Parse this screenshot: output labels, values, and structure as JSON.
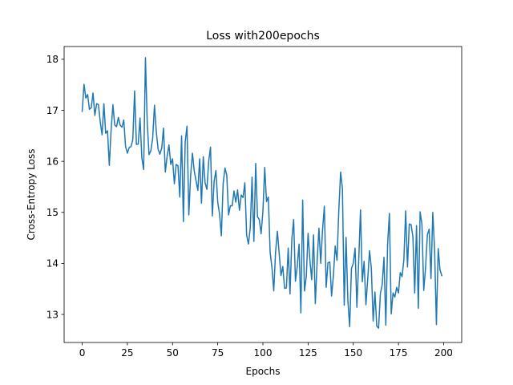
{
  "chart_data": {
    "type": "line",
    "title": "Loss with200epochs",
    "xlabel": "Epochs",
    "ylabel": "Cross-Entropy Loss",
    "xlim": [
      -10,
      210
    ],
    "ylim": [
      12.45,
      18.25
    ],
    "xticks": [
      0,
      25,
      50,
      75,
      100,
      125,
      150,
      175,
      200
    ],
    "yticks": [
      13,
      14,
      15,
      16,
      17,
      18
    ],
    "grid": false,
    "legend": "none",
    "series": [
      {
        "color": "#1f77b4",
        "x": [
          0,
          1,
          2,
          3,
          4,
          5,
          6,
          7,
          8,
          9,
          10,
          11,
          12,
          13,
          14,
          15,
          16,
          17,
          18,
          19,
          20,
          21,
          22,
          23,
          24,
          25,
          26,
          27,
          28,
          29,
          30,
          31,
          32,
          33,
          34,
          35,
          36,
          37,
          38,
          39,
          40,
          41,
          42,
          43,
          44,
          45,
          46,
          47,
          48,
          49,
          50,
          51,
          52,
          53,
          54,
          55,
          56,
          57,
          58,
          59,
          60,
          61,
          62,
          63,
          64,
          65,
          66,
          67,
          68,
          69,
          70,
          71,
          72,
          73,
          74,
          75,
          76,
          77,
          78,
          79,
          80,
          81,
          82,
          83,
          84,
          85,
          86,
          87,
          88,
          89,
          90,
          91,
          92,
          93,
          94,
          95,
          96,
          97,
          98,
          99,
          100,
          101,
          102,
          103,
          104,
          105,
          106,
          107,
          108,
          109,
          110,
          111,
          112,
          113,
          114,
          115,
          116,
          117,
          118,
          119,
          120,
          121,
          122,
          123,
          124,
          125,
          126,
          127,
          128,
          129,
          130,
          131,
          132,
          133,
          134,
          135,
          136,
          137,
          138,
          139,
          140,
          141,
          142,
          143,
          144,
          145,
          146,
          147,
          148,
          149,
          150,
          151,
          152,
          153,
          154,
          155,
          156,
          157,
          158,
          159,
          160,
          161,
          162,
          163,
          164,
          165,
          166,
          167,
          168,
          169,
          170,
          171,
          172,
          173,
          174,
          175,
          176,
          177,
          178,
          179,
          180,
          181,
          182,
          183,
          184,
          185,
          186,
          187,
          188,
          189,
          190,
          191,
          192,
          193,
          194,
          195,
          196,
          197,
          198,
          199
        ],
        "y": [
          16.98,
          17.51,
          17.24,
          17.31,
          17.02,
          17.05,
          17.34,
          16.9,
          17.13,
          17.11,
          16.77,
          16.52,
          17.13,
          16.55,
          16.6,
          15.92,
          16.61,
          17.11,
          16.71,
          16.68,
          16.86,
          16.71,
          16.67,
          16.81,
          16.29,
          16.16,
          16.27,
          16.29,
          16.42,
          17.38,
          16.33,
          16.34,
          16.85,
          16.07,
          15.84,
          18.03,
          16.75,
          16.13,
          16.21,
          16.45,
          17.1,
          16.58,
          16.24,
          16.14,
          16.26,
          16.65,
          15.79,
          16.1,
          16.32,
          15.94,
          16.05,
          15.56,
          15.94,
          15.91,
          15.3,
          16.5,
          14.82,
          16.38,
          16.69,
          14.95,
          15.72,
          16.16,
          15.81,
          15.62,
          15.43,
          16.05,
          15.18,
          16.09,
          15.58,
          15.45,
          16.0,
          16.28,
          14.93,
          15.61,
          15.82,
          15.2,
          14.97,
          14.54,
          15.56,
          15.87,
          15.73,
          14.95,
          15.13,
          15.13,
          15.42,
          15.2,
          15.44,
          15.04,
          15.34,
          15.29,
          15.58,
          14.55,
          14.38,
          14.7,
          15.69,
          14.43,
          15.96,
          14.91,
          14.86,
          14.58,
          15.02,
          15.88,
          15.21,
          15.3,
          14.22,
          13.92,
          13.46,
          14.22,
          14.63,
          14.2,
          13.76,
          13.94,
          13.51,
          13.52,
          14.3,
          13.4,
          14.47,
          14.86,
          13.65,
          13.94,
          14.38,
          13.03,
          15.24,
          13.46,
          13.74,
          14.59,
          14.06,
          13.68,
          14.56,
          13.21,
          14.04,
          14.69,
          14.0,
          14.66,
          15.12,
          13.53,
          14.01,
          14.03,
          13.36,
          13.76,
          14.34,
          14.06,
          15.04,
          15.79,
          15.46,
          13.18,
          14.51,
          13.28,
          12.76,
          13.9,
          14.0,
          14.3,
          13.14,
          14.04,
          15.05,
          13.64,
          14.04,
          13.19,
          13.69,
          14.25,
          13.9,
          12.87,
          13.44,
          12.77,
          12.73,
          13.41,
          13.58,
          14.12,
          12.79,
          14.37,
          14.98,
          13.01,
          13.42,
          13.34,
          13.53,
          13.42,
          13.82,
          13.74,
          14.07,
          15.03,
          13.93,
          14.77,
          14.76,
          14.52,
          13.42,
          14.74,
          13.12,
          15.01,
          14.77,
          13.47,
          13.92,
          14.56,
          14.67,
          13.7,
          15.0,
          14.27,
          12.8,
          14.29,
          13.87,
          13.76
        ]
      }
    ]
  }
}
